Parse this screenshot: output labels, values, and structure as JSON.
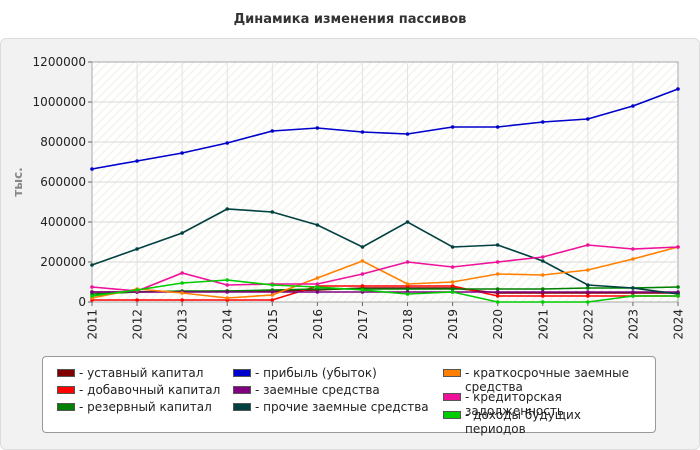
{
  "chart_data": {
    "type": "line",
    "title": "Динамика изменения пассивов",
    "ylabel": "тыс.",
    "xlabel": "",
    "x": [
      "2011",
      "2012",
      "2013",
      "2014",
      "2015",
      "2016",
      "2017",
      "2018",
      "2019",
      "2020",
      "2021",
      "2022",
      "2023",
      "2024"
    ],
    "ylim": [
      0,
      1200000
    ],
    "yticks": [
      0,
      200000,
      400000,
      600000,
      800000,
      1000000,
      1200000
    ],
    "grid": true,
    "legend_position": "bottom",
    "series": [
      {
        "name": "- уставный капитал",
        "color": "#800000",
        "values": [
          50000,
          50000,
          52000,
          55000,
          55000,
          60000,
          70000,
          70000,
          70000,
          45000,
          45000,
          45000,
          45000,
          45000
        ]
      },
      {
        "name": "- добавочный капитал",
        "color": "#ff0000",
        "values": [
          10000,
          10000,
          10000,
          10000,
          10000,
          80000,
          80000,
          80000,
          80000,
          30000,
          30000,
          30000,
          30000,
          30000
        ]
      },
      {
        "name": "- резервный капитал",
        "color": "#008000",
        "values": [
          40000,
          50000,
          55000,
          55000,
          60000,
          65000,
          65000,
          65000,
          65000,
          65000,
          65000,
          70000,
          70000,
          75000
        ]
      },
      {
        "name": "- прибыль (убыток)",
        "color": "#0000cc",
        "values": [
          665000,
          705000,
          745000,
          795000,
          855000,
          870000,
          850000,
          840000,
          875000,
          875000,
          900000,
          915000,
          980000,
          1065000
        ]
      },
      {
        "name": "- заемные средства",
        "color": "#800080",
        "values": [
          50000,
          50000,
          50000,
          50000,
          50000,
          50000,
          50000,
          50000,
          50000,
          50000,
          50000,
          50000,
          50000,
          50000
        ]
      },
      {
        "name": "- прочие заемные средства",
        "color": "#004040",
        "values": [
          185000,
          265000,
          345000,
          465000,
          450000,
          385000,
          275000,
          400000,
          275000,
          285000,
          205000,
          85000,
          70000,
          40000
        ]
      },
      {
        "name": "- краткосрочные заемные средства",
        "color": "#ff8000",
        "values": [
          20000,
          65000,
          45000,
          20000,
          35000,
          120000,
          205000,
          90000,
          100000,
          140000,
          135000,
          160000,
          215000,
          275000
        ]
      },
      {
        "name": "- кредиторская задолженность",
        "color": "#ee1199",
        "values": [
          75000,
          55000,
          145000,
          85000,
          90000,
          90000,
          140000,
          200000,
          175000,
          200000,
          225000,
          285000,
          265000,
          275000
        ]
      },
      {
        "name": "- доходы будущих периодов",
        "color": "#00cc00",
        "values": [
          30000,
          60000,
          95000,
          110000,
          85000,
          75000,
          60000,
          40000,
          50000,
          0,
          0,
          0,
          30000,
          30000
        ]
      }
    ]
  }
}
